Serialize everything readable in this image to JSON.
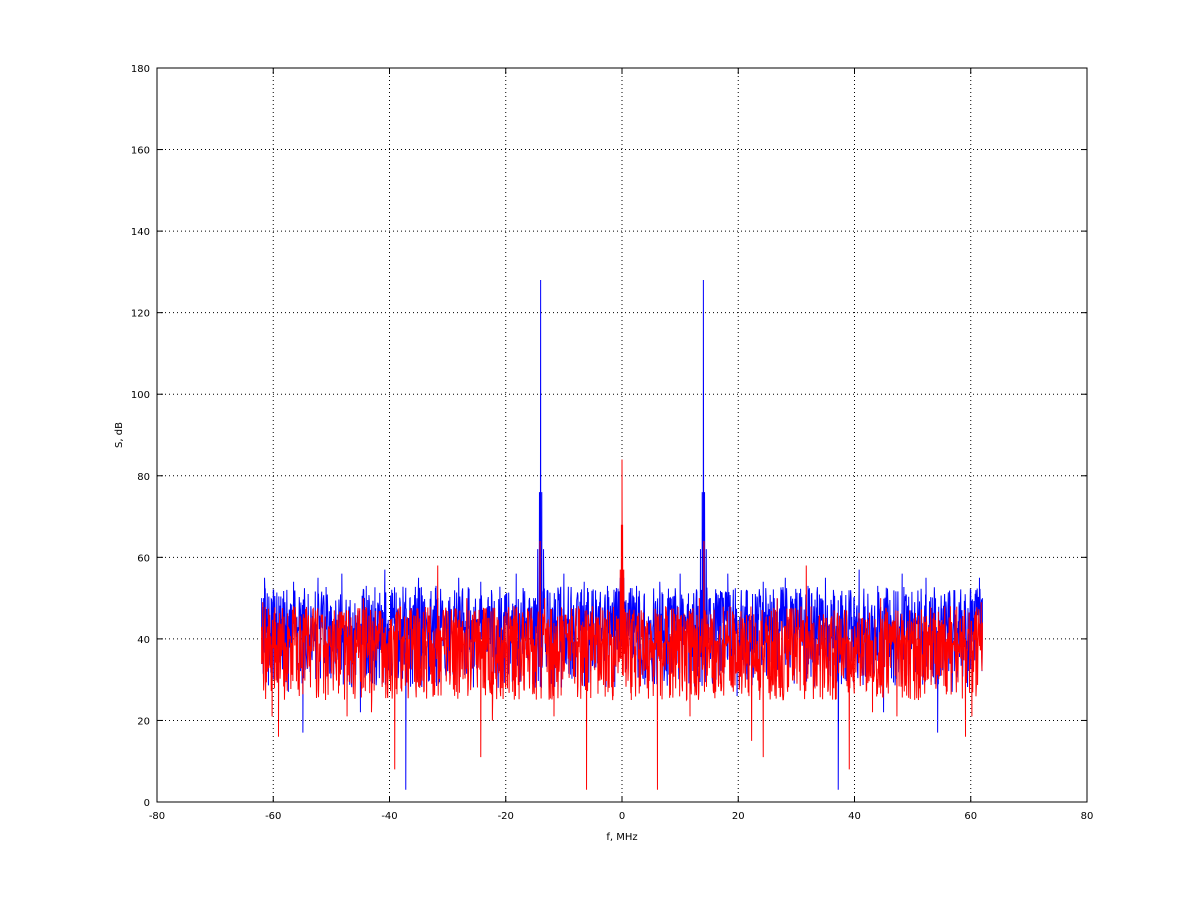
{
  "chart_data": {
    "type": "line",
    "title": "",
    "xlabel": "f, MHz",
    "ylabel": "S, dB",
    "xlim": [
      -80,
      80
    ],
    "ylim": [
      0,
      180
    ],
    "xticks": [
      -80,
      -60,
      -40,
      -20,
      0,
      20,
      40,
      60,
      80
    ],
    "yticks": [
      0,
      20,
      40,
      60,
      80,
      100,
      120,
      140,
      160,
      180
    ],
    "grid": true,
    "legend": "none",
    "series": [
      {
        "color": "#0000ff",
        "noise_floor": {
          "x_range": [
            -62,
            62
          ],
          "typical_min": 28,
          "typical_max": 55,
          "mean": 44
        },
        "points": [
          [
            -62,
            50
          ],
          [
            -61.5,
            55
          ],
          [
            -61,
            44
          ],
          [
            -60,
            52
          ],
          [
            -59,
            38
          ],
          [
            -58,
            49
          ],
          [
            -57.4,
            27
          ],
          [
            -56.5,
            54
          ],
          [
            -54.9,
            17
          ],
          [
            -54,
            51
          ],
          [
            -52.3,
            55
          ],
          [
            -50,
            46
          ],
          [
            -48.2,
            56
          ],
          [
            -46.5,
            40
          ],
          [
            -45,
            22
          ],
          [
            -44,
            53
          ],
          [
            -42.5,
            33
          ],
          [
            -40.8,
            57
          ],
          [
            -39,
            45
          ],
          [
            -37.2,
            3
          ],
          [
            -36.5,
            50
          ],
          [
            -35,
            55
          ],
          [
            -33.5,
            40
          ],
          [
            -32,
            53
          ],
          [
            -30.2,
            47
          ],
          [
            -28.1,
            55
          ],
          [
            -26,
            41
          ],
          [
            -24.3,
            54
          ],
          [
            -22.5,
            37
          ],
          [
            -21.3,
            28
          ],
          [
            -20,
            51
          ],
          [
            -18.2,
            56
          ],
          [
            -16.5,
            42
          ],
          [
            -15.2,
            50
          ],
          [
            -14.5,
            62
          ],
          [
            -14.2,
            76
          ],
          [
            -14.0,
            128
          ],
          [
            -13.8,
            76
          ],
          [
            -13.5,
            62
          ],
          [
            -12.8,
            52
          ],
          [
            -11.2,
            44
          ],
          [
            -10,
            56
          ],
          [
            -8.5,
            41
          ],
          [
            -6.5,
            54
          ],
          [
            -4.5,
            33
          ],
          [
            -2.5,
            53
          ],
          [
            -1,
            44
          ],
          [
            -0.3,
            55
          ],
          [
            0,
            52
          ],
          [
            0.3,
            55
          ],
          [
            1,
            44
          ],
          [
            2.5,
            53
          ],
          [
            4.5,
            33
          ],
          [
            6.5,
            54
          ],
          [
            8.5,
            41
          ],
          [
            10,
            56
          ],
          [
            11.2,
            44
          ],
          [
            12.8,
            52
          ],
          [
            13.5,
            62
          ],
          [
            13.8,
            76
          ],
          [
            14.0,
            128
          ],
          [
            14.2,
            76
          ],
          [
            14.5,
            62
          ],
          [
            15.2,
            50
          ],
          [
            16.5,
            42
          ],
          [
            18.2,
            56
          ],
          [
            19.8,
            26
          ],
          [
            21.3,
            45
          ],
          [
            22.5,
            37
          ],
          [
            24.3,
            54
          ],
          [
            26,
            41
          ],
          [
            28.1,
            55
          ],
          [
            30.2,
            47
          ],
          [
            32,
            53
          ],
          [
            33.5,
            40
          ],
          [
            35,
            55
          ],
          [
            36.5,
            50
          ],
          [
            37.2,
            3
          ],
          [
            39,
            45
          ],
          [
            40.8,
            57
          ],
          [
            42.5,
            33
          ],
          [
            44,
            53
          ],
          [
            45,
            22
          ],
          [
            46.5,
            40
          ],
          [
            48.2,
            56
          ],
          [
            50,
            46
          ],
          [
            52.3,
            55
          ],
          [
            54.3,
            17
          ],
          [
            55.5,
            51
          ],
          [
            56.8,
            27
          ],
          [
            58,
            49
          ],
          [
            59,
            38
          ],
          [
            60,
            52
          ],
          [
            61,
            44
          ],
          [
            61.5,
            55
          ],
          [
            62,
            50
          ]
        ]
      },
      {
        "color": "#ff0000",
        "noise_floor": {
          "x_range": [
            -62,
            62
          ],
          "typical_min": 25,
          "typical_max": 50,
          "mean": 40
        },
        "points": [
          [
            -62,
            34
          ],
          [
            -61.8,
            49
          ],
          [
            -61,
            40
          ],
          [
            -60.2,
            21
          ],
          [
            -59.7,
            45
          ],
          [
            -59.1,
            16
          ],
          [
            -58.2,
            40
          ],
          [
            -56.5,
            48
          ],
          [
            -55,
            31
          ],
          [
            -53.5,
            45
          ],
          [
            -51,
            25
          ],
          [
            -49.5,
            47
          ],
          [
            -47.3,
            21
          ],
          [
            -46,
            42
          ],
          [
            -44.5,
            50
          ],
          [
            -43.1,
            22
          ],
          [
            -41.2,
            45
          ],
          [
            -39.1,
            8
          ],
          [
            -38,
            40
          ],
          [
            -36.5,
            47
          ],
          [
            -34.8,
            28
          ],
          [
            -33,
            44
          ],
          [
            -31.7,
            58
          ],
          [
            -30,
            38
          ],
          [
            -28.5,
            27
          ],
          [
            -26.7,
            50
          ],
          [
            -24.3,
            11
          ],
          [
            -23,
            44
          ],
          [
            -22.3,
            20
          ],
          [
            -20.5,
            39
          ],
          [
            -18.6,
            48
          ],
          [
            -16.9,
            29
          ],
          [
            -15.5,
            45
          ],
          [
            -14.1,
            64
          ],
          [
            -13.3,
            50
          ],
          [
            -11.7,
            21
          ],
          [
            -10.5,
            43
          ],
          [
            -9,
            36
          ],
          [
            -7.5,
            48
          ],
          [
            -6.1,
            3
          ],
          [
            -5,
            40
          ],
          [
            -3.3,
            47
          ],
          [
            -1.6,
            25
          ],
          [
            -0.6,
            45
          ],
          [
            -0.3,
            57
          ],
          [
            -0.1,
            68
          ],
          [
            0,
            84
          ],
          [
            0.1,
            68
          ],
          [
            0.3,
            57
          ],
          [
            0.6,
            45
          ],
          [
            1.6,
            25
          ],
          [
            3.3,
            47
          ],
          [
            5,
            40
          ],
          [
            6.1,
            3
          ],
          [
            7.5,
            48
          ],
          [
            9,
            36
          ],
          [
            10.5,
            43
          ],
          [
            11.7,
            21
          ],
          [
            13.3,
            50
          ],
          [
            14.1,
            64
          ],
          [
            15.5,
            45
          ],
          [
            16.9,
            29
          ],
          [
            18.6,
            48
          ],
          [
            20.5,
            39
          ],
          [
            22.3,
            15
          ],
          [
            23,
            44
          ],
          [
            24.3,
            11
          ],
          [
            26.7,
            50
          ],
          [
            28.5,
            27
          ],
          [
            30,
            38
          ],
          [
            31.7,
            58
          ],
          [
            33,
            44
          ],
          [
            34.8,
            28
          ],
          [
            36.5,
            47
          ],
          [
            38,
            40
          ],
          [
            39.1,
            8
          ],
          [
            41.2,
            45
          ],
          [
            43.1,
            22
          ],
          [
            44.5,
            50
          ],
          [
            46,
            42
          ],
          [
            47.3,
            21
          ],
          [
            49.5,
            47
          ],
          [
            51,
            25
          ],
          [
            53.5,
            45
          ],
          [
            55,
            31
          ],
          [
            56.5,
            48
          ],
          [
            58.2,
            40
          ],
          [
            59.1,
            16
          ],
          [
            59.7,
            45
          ],
          [
            60.2,
            21
          ],
          [
            61,
            40
          ],
          [
            61.8,
            49
          ],
          [
            62,
            44
          ]
        ]
      }
    ]
  }
}
